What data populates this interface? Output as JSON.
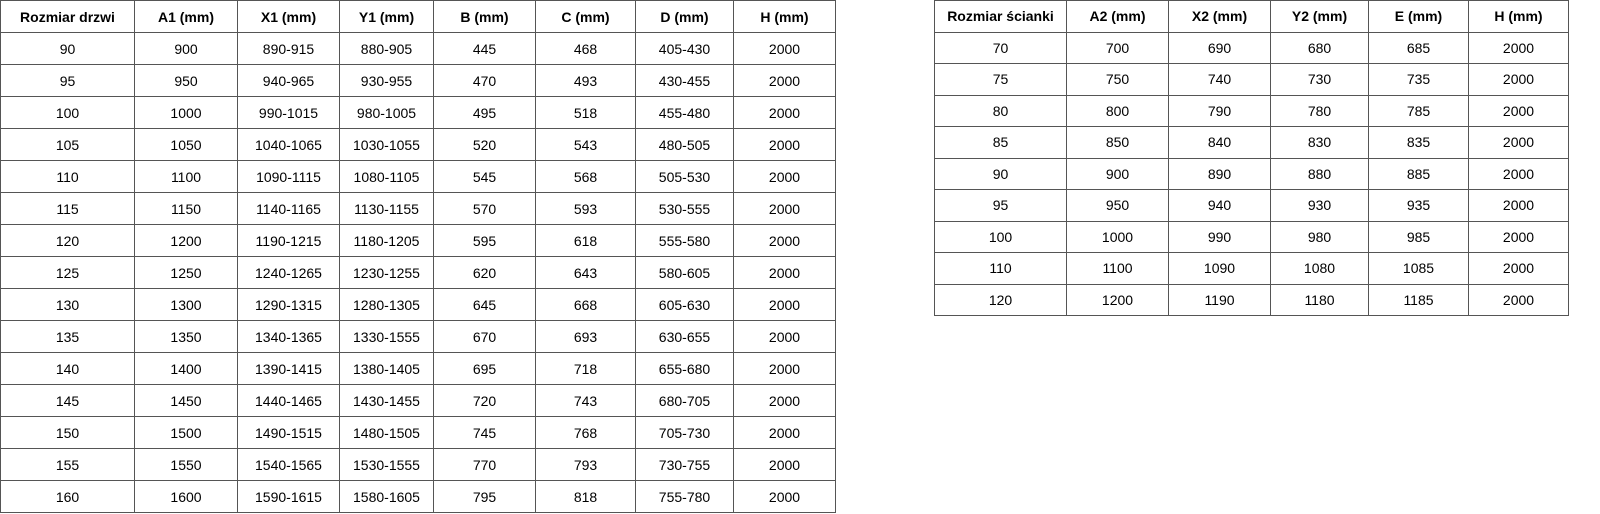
{
  "doors_table": {
    "headers": [
      "Rozmiar drzwi",
      "A1 (mm)",
      "X1 (mm)",
      "Y1 (mm)",
      "B (mm)",
      "C (mm)",
      "D (mm)",
      "H (mm)"
    ],
    "rows": [
      [
        "90",
        "900",
        "890-915",
        "880-905",
        "445",
        "468",
        "405-430",
        "2000"
      ],
      [
        "95",
        "950",
        "940-965",
        "930-955",
        "470",
        "493",
        "430-455",
        "2000"
      ],
      [
        "100",
        "1000",
        "990-1015",
        "980-1005",
        "495",
        "518",
        "455-480",
        "2000"
      ],
      [
        "105",
        "1050",
        "1040-1065",
        "1030-1055",
        "520",
        "543",
        "480-505",
        "2000"
      ],
      [
        "110",
        "1100",
        "1090-1115",
        "1080-1105",
        "545",
        "568",
        "505-530",
        "2000"
      ],
      [
        "115",
        "1150",
        "1140-1165",
        "1130-1155",
        "570",
        "593",
        "530-555",
        "2000"
      ],
      [
        "120",
        "1200",
        "1190-1215",
        "1180-1205",
        "595",
        "618",
        "555-580",
        "2000"
      ],
      [
        "125",
        "1250",
        "1240-1265",
        "1230-1255",
        "620",
        "643",
        "580-605",
        "2000"
      ],
      [
        "130",
        "1300",
        "1290-1315",
        "1280-1305",
        "645",
        "668",
        "605-630",
        "2000"
      ],
      [
        "135",
        "1350",
        "1340-1365",
        "1330-1555",
        "670",
        "693",
        "630-655",
        "2000"
      ],
      [
        "140",
        "1400",
        "1390-1415",
        "1380-1405",
        "695",
        "718",
        "655-680",
        "2000"
      ],
      [
        "145",
        "1450",
        "1440-1465",
        "1430-1455",
        "720",
        "743",
        "680-705",
        "2000"
      ],
      [
        "150",
        "1500",
        "1490-1515",
        "1480-1505",
        "745",
        "768",
        "705-730",
        "2000"
      ],
      [
        "155",
        "1550",
        "1540-1565",
        "1530-1555",
        "770",
        "793",
        "730-755",
        "2000"
      ],
      [
        "160",
        "1600",
        "1590-1615",
        "1580-1605",
        "795",
        "818",
        "755-780",
        "2000"
      ]
    ]
  },
  "walls_table": {
    "headers": [
      "Rozmiar ścianki",
      "A2 (mm)",
      "X2 (mm)",
      "Y2 (mm)",
      "E (mm)",
      "H (mm)"
    ],
    "rows": [
      [
        "70",
        "700",
        "690",
        "680",
        "685",
        "2000"
      ],
      [
        "75",
        "750",
        "740",
        "730",
        "735",
        "2000"
      ],
      [
        "80",
        "800",
        "790",
        "780",
        "785",
        "2000"
      ],
      [
        "85",
        "850",
        "840",
        "830",
        "835",
        "2000"
      ],
      [
        "90",
        "900",
        "890",
        "880",
        "885",
        "2000"
      ],
      [
        "95",
        "950",
        "940",
        "930",
        "935",
        "2000"
      ],
      [
        "100",
        "1000",
        "990",
        "980",
        "985",
        "2000"
      ],
      [
        "110",
        "1100",
        "1090",
        "1080",
        "1085",
        "2000"
      ],
      [
        "120",
        "1200",
        "1190",
        "1180",
        "1185",
        "2000"
      ]
    ]
  }
}
